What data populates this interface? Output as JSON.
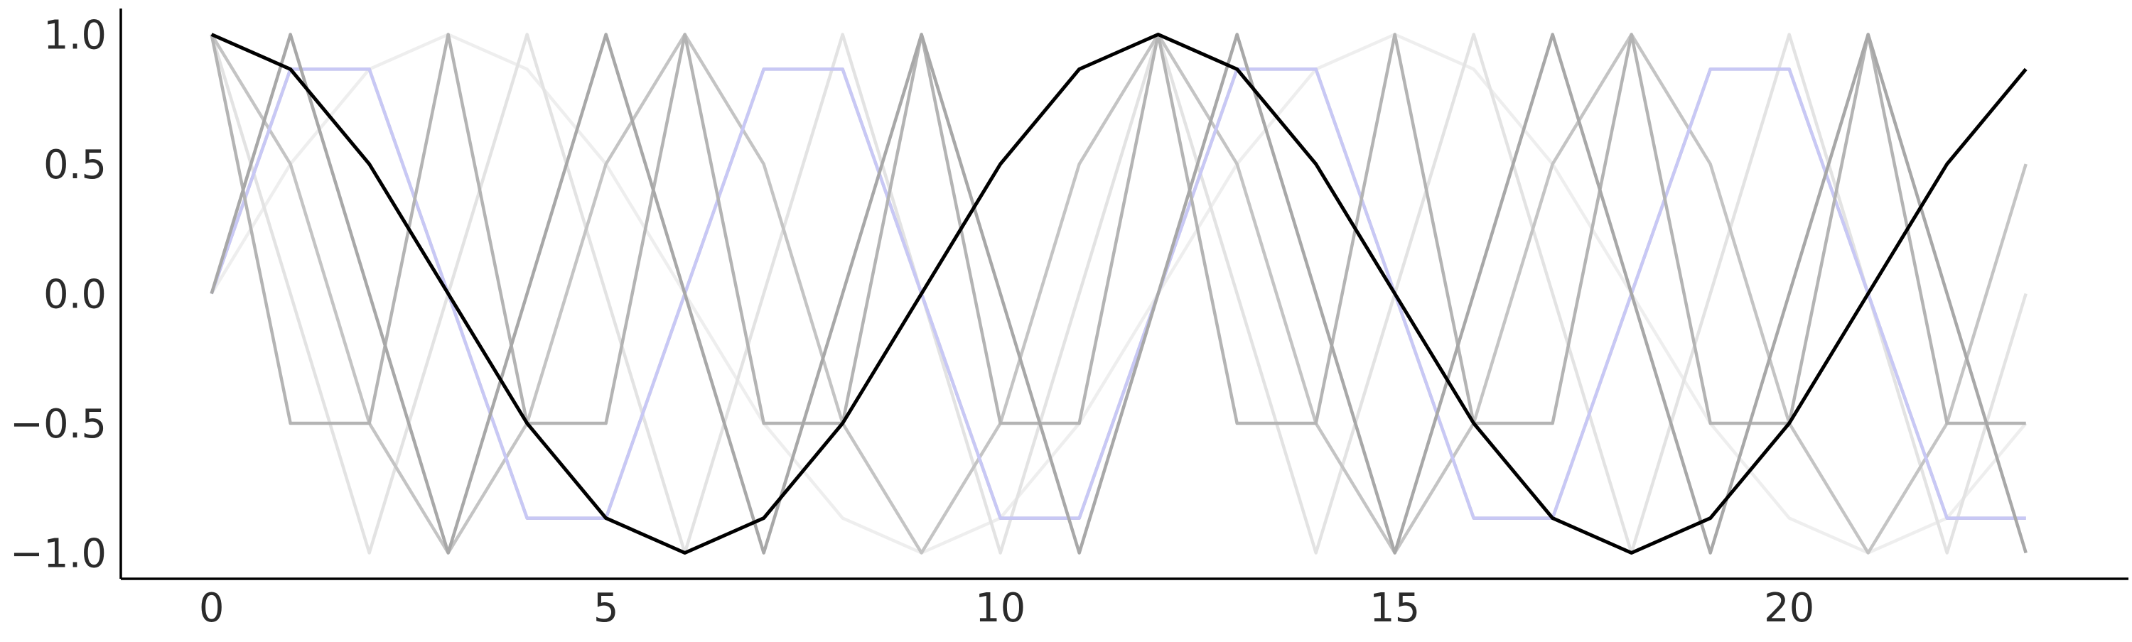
{
  "chart_data": {
    "type": "line",
    "title": "",
    "xlabel": "",
    "ylabel": "",
    "xlim": [
      -1.15,
      24.3
    ],
    "ylim": [
      -1.1,
      1.1
    ],
    "grid": false,
    "x_ticks": [
      0,
      5,
      10,
      15,
      20
    ],
    "x_tick_labels": [
      "0",
      "5",
      "10",
      "15",
      "20"
    ],
    "y_ticks": [
      1.0,
      0.5,
      0.0,
      -0.5,
      -1.0
    ],
    "y_tick_labels": [
      "1.0",
      "0.5",
      "0.0",
      "−0.5",
      "−1.0"
    ],
    "x": [
      0,
      1,
      2,
      3,
      4,
      5,
      6,
      7,
      8,
      9,
      10,
      11,
      12,
      13,
      14,
      15,
      16,
      17,
      18,
      19,
      20,
      21,
      22,
      23
    ],
    "series": [
      {
        "color": "#eeeeee",
        "values": [
          1.0,
          0.866,
          0.5,
          0.0,
          -0.5,
          -0.866,
          -1.0,
          -0.866,
          -0.5,
          0.0,
          0.5,
          0.866,
          1.0,
          0.866,
          0.5,
          0.0,
          -0.5,
          -0.866,
          -1.0,
          -0.866,
          -0.5,
          0.0,
          0.5,
          0.866
        ]
      },
      {
        "color": "#eeeeee",
        "values": [
          0.0,
          0.5,
          0.866,
          1.0,
          0.866,
          0.5,
          0.0,
          -0.5,
          -0.866,
          -1.0,
          -0.866,
          -0.5,
          0.0,
          0.5,
          0.866,
          1.0,
          0.866,
          0.5,
          0.0,
          -0.5,
          -0.866,
          -1.0,
          -0.866,
          -0.5
        ]
      },
      {
        "color": "#e3e3e3",
        "values": [
          1.0,
          0.0,
          -1.0,
          0.0,
          1.0,
          0.0,
          -1.0,
          0.0,
          1.0,
          0.0,
          -1.0,
          0.0,
          1.0,
          0.0,
          -1.0,
          0.0,
          1.0,
          0.0,
          -1.0,
          0.0,
          1.0,
          0.0,
          -1.0,
          0.0
        ]
      },
      {
        "color": "#d9d9d9",
        "values": [
          0.0,
          1.0,
          0.0,
          -1.0,
          0.0,
          1.0,
          0.0,
          -1.0,
          0.0,
          1.0,
          0.0,
          -1.0,
          0.0,
          1.0,
          0.0,
          -1.0,
          0.0,
          1.0,
          0.0,
          -1.0,
          0.0,
          1.0,
          0.0,
          -1.0
        ]
      },
      {
        "color": "#c4c4c4",
        "values": [
          1.0,
          0.5,
          -0.5,
          -1.0,
          -0.5,
          0.5,
          1.0,
          0.5,
          -0.5,
          -1.0,
          -0.5,
          0.5,
          1.0,
          0.5,
          -0.5,
          -1.0,
          -0.5,
          0.5,
          1.0,
          0.5,
          -0.5,
          -1.0,
          -0.5,
          0.5
        ]
      },
      {
        "color": "#bcbcbc",
        "values": [
          0.0,
          0.866,
          0.866,
          0.0,
          -0.866,
          -0.866,
          0.0,
          0.866,
          0.866,
          0.0,
          -0.866,
          -0.866,
          0.0,
          0.866,
          0.866,
          0.0,
          -0.866,
          -0.866,
          0.0,
          0.866,
          0.866,
          0.0,
          -0.866,
          -0.866
        ]
      },
      {
        "color": "#c8c8f5",
        "values": [
          0.0,
          0.866,
          0.866,
          0.0,
          -0.866,
          -0.866,
          0.0,
          0.866,
          0.866,
          0.0,
          -0.866,
          -0.866,
          0.0,
          0.866,
          0.866,
          0.0,
          -0.866,
          -0.866,
          0.0,
          0.866,
          0.866,
          0.0,
          -0.866,
          -0.866
        ]
      },
      {
        "color": "#b4b4b4",
        "values": [
          1.0,
          -0.5,
          -0.5,
          1.0,
          -0.5,
          -0.5,
          1.0,
          -0.5,
          -0.5,
          1.0,
          -0.5,
          -0.5,
          1.0,
          -0.5,
          -0.5,
          1.0,
          -0.5,
          -0.5,
          1.0,
          -0.5,
          -0.5,
          1.0,
          -0.5,
          -0.5
        ]
      },
      {
        "color": "#a8a8a8",
        "values": [
          0.0,
          1.0,
          0.0,
          -1.0,
          0.0,
          1.0,
          0.0,
          -1.0,
          0.0,
          1.0,
          0.0,
          -1.0,
          0.0,
          1.0,
          0.0,
          -1.0,
          0.0,
          1.0,
          0.0,
          -1.0,
          0.0,
          1.0,
          0.0,
          -1.0
        ]
      },
      {
        "color": "#000000",
        "values": [
          1.0,
          0.866,
          0.5,
          0.0,
          -0.5,
          -0.866,
          -1.0,
          -0.866,
          -0.5,
          0.0,
          0.5,
          0.866,
          1.0,
          0.866,
          0.5,
          0.0,
          -0.5,
          -0.866,
          -1.0,
          -0.866,
          -0.5,
          0.0,
          0.5,
          0.866
        ]
      }
    ]
  }
}
